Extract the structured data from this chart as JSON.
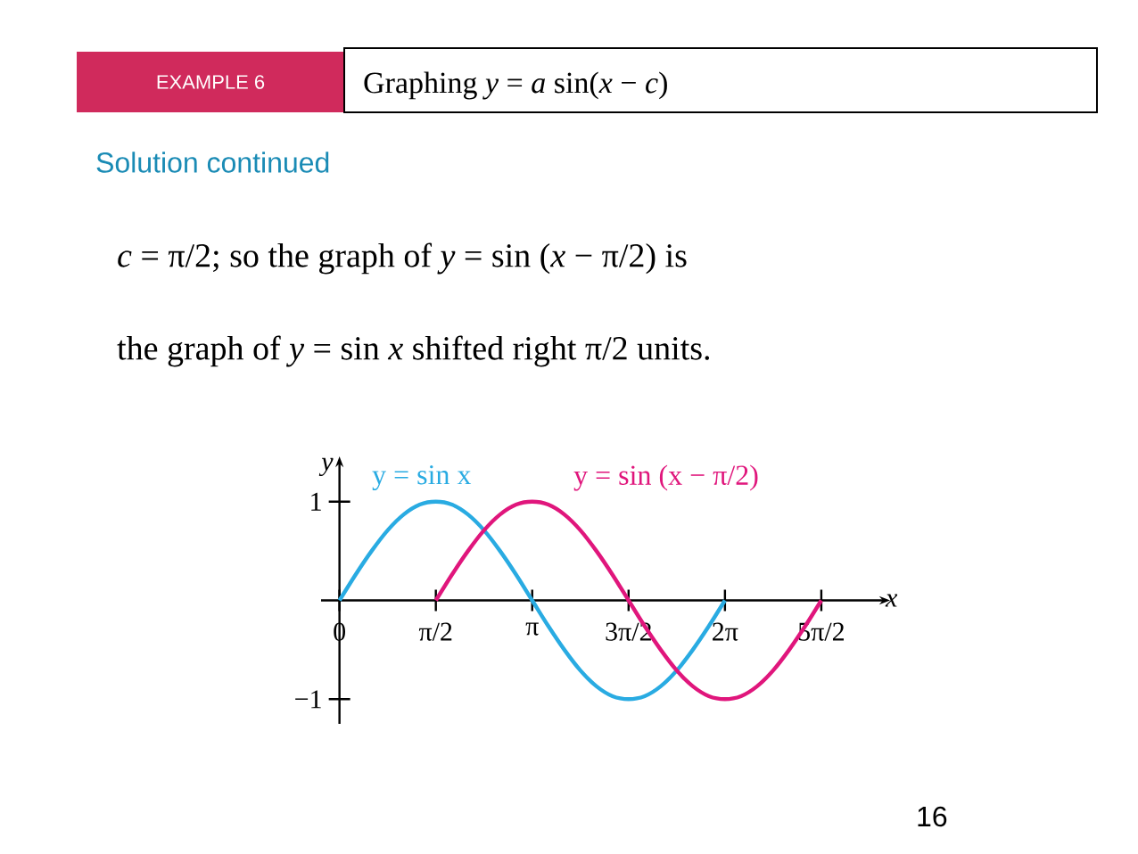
{
  "chart_data": {
    "type": "line",
    "title": "EXAMPLE 6",
    "subtitle": "Graphing *y* = *a* sin(*x* − *c*)",
    "annotations": [
      "Solution continued",
      "*c* = π/2; so the graph of *y* = sin (*x* − π/2) is",
      "the graph of *y* = sin *x* shifted right π/2 units.",
      "16"
    ],
    "xlabel": "x",
    "ylabel": "y",
    "legend": false,
    "marker": "none",
    "line_style": "solid",
    "xlim": [
      -0.3,
      8.8
    ],
    "ylim": [
      -1.25,
      1.35
    ],
    "xticks": [
      {
        "value": 0,
        "label": "0"
      },
      {
        "value": 1.5708,
        "label": "π/2"
      },
      {
        "value": 3.1416,
        "label": "π"
      },
      {
        "value": 4.7124,
        "label": "3π/2"
      },
      {
        "value": 6.2832,
        "label": "2π"
      },
      {
        "value": 7.854,
        "label": "5π/2"
      }
    ],
    "yticks": [
      1,
      {
        "value": -1,
        "label": "−1"
      }
    ],
    "series": [
      {
        "name": "y = sin x",
        "color": "#29abe2",
        "x": [
          0,
          0.2618,
          0.5236,
          0.7854,
          1.0472,
          1.309,
          1.5708,
          1.8326,
          2.0944,
          2.3562,
          2.618,
          2.8798,
          3.1416,
          3.4034,
          3.6652,
          3.927,
          4.1888,
          4.4506,
          4.7124,
          4.9742,
          5.236,
          5.4978,
          5.7596,
          6.0214,
          6.2832
        ],
        "values": [
          0,
          0.26,
          0.5,
          0.71,
          0.87,
          0.97,
          1,
          0.97,
          0.87,
          0.71,
          0.5,
          0.26,
          0,
          -0.26,
          -0.5,
          -0.71,
          -0.87,
          -0.97,
          -1,
          -0.97,
          -0.87,
          -0.71,
          -0.5,
          -0.26,
          0
        ]
      },
      {
        "name": "y = sin (x − π/2)",
        "color": "#e0167c",
        "x": [
          1.5708,
          1.8326,
          2.0944,
          2.3562,
          2.618,
          2.8798,
          3.1416,
          3.4034,
          3.6652,
          3.927,
          4.1888,
          4.4506,
          4.7124,
          4.9742,
          5.236,
          5.4978,
          5.7596,
          6.0214,
          6.2832,
          6.545,
          6.8068,
          7.0686,
          7.3304,
          7.5922,
          7.854
        ],
        "values": [
          0,
          0.26,
          0.5,
          0.71,
          0.87,
          0.97,
          1,
          0.97,
          0.87,
          0.71,
          0.5,
          0.26,
          0,
          -0.26,
          -0.5,
          -0.71,
          -0.87,
          -0.97,
          -1,
          -0.97,
          -0.87,
          -0.71,
          -0.5,
          -0.26,
          0
        ]
      }
    ]
  }
}
